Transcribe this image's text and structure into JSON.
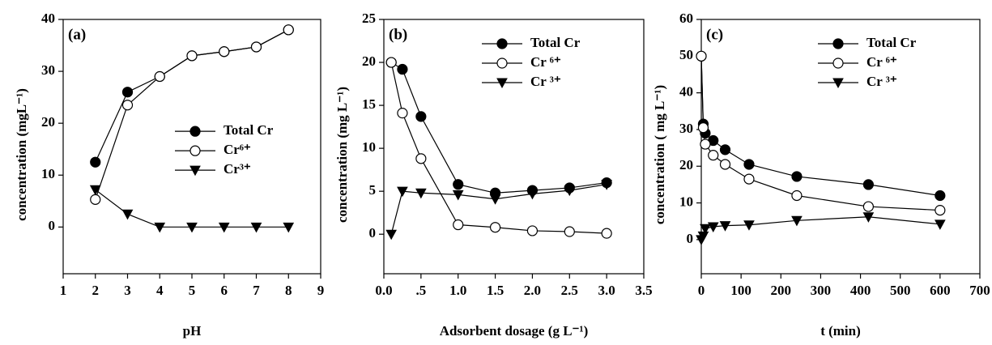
{
  "chart_data": [
    {
      "type": "line",
      "panel_label": "(a)",
      "x_label": "pH",
      "y_label": "concentration (mgL⁻¹)",
      "x": [
        2,
        3,
        4,
        5,
        6,
        7,
        8
      ],
      "series": [
        {
          "name": "Total Cr",
          "color": "#000000",
          "marker": "filled-circle",
          "values": [
            12.5,
            26,
            29,
            33,
            33.8,
            34.7,
            38
          ]
        },
        {
          "name": "Cr⁶⁺",
          "color": "#000000",
          "marker": "open-circle",
          "values": [
            5.3,
            23.5,
            29,
            33,
            33.8,
            34.7,
            38
          ]
        },
        {
          "name": "Cr³⁺",
          "color": "#000000",
          "marker": "triangle-down",
          "values": [
            7.2,
            2.5,
            0,
            0,
            0,
            0,
            0
          ]
        }
      ],
      "xlim": [
        1,
        9
      ],
      "xticks": [
        1,
        2,
        3,
        4,
        5,
        6,
        7,
        8,
        9
      ],
      "ylim": [
        -9,
        40
      ],
      "yticks": [
        0,
        10,
        20,
        30,
        40
      ],
      "legend": "center right"
    },
    {
      "type": "line",
      "panel_label": "(b)",
      "x_label": "Adsorbent dosage (g L⁻¹)",
      "y_label": "concentration (mg L⁻¹)",
      "x": [
        0.1,
        0.25,
        0.5,
        1.0,
        1.5,
        2.0,
        2.5,
        3.0
      ],
      "series": [
        {
          "name": "Total Cr",
          "color": "#000000",
          "marker": "filled-circle",
          "values": [
            20,
            19.2,
            13.7,
            5.8,
            4.8,
            5.1,
            5.4,
            6
          ]
        },
        {
          "name": "Cr ⁶⁺",
          "color": "#000000",
          "marker": "open-circle",
          "values": [
            20,
            14.1,
            8.8,
            1.1,
            0.8,
            0.4,
            0.3,
            0.1
          ]
        },
        {
          "name": "Cr ³⁺",
          "color": "#000000",
          "marker": "triangle-down",
          "values": [
            0,
            5,
            4.8,
            4.6,
            4.1,
            4.7,
            5.1,
            5.8
          ]
        }
      ],
      "xlim": [
        0,
        3.5
      ],
      "xticks": [
        {
          "value": 0,
          "label": "0.0"
        },
        {
          "value": 0.5,
          "label": ".5"
        },
        {
          "value": 1,
          "label": "1.0"
        },
        {
          "value": 1.5,
          "label": "1.5"
        },
        {
          "value": 2,
          "label": "2.0"
        },
        {
          "value": 2.5,
          "label": "2.5"
        },
        {
          "value": 3,
          "label": "3.0"
        },
        {
          "value": 3.5,
          "label": "3.5"
        }
      ],
      "ylim": [
        -4.6,
        25
      ],
      "yticks": [
        0,
        5,
        10,
        15,
        20,
        25
      ],
      "legend": "upper right"
    },
    {
      "type": "line",
      "panel_label": "(c)",
      "x_label": "t (min)",
      "y_label": "concentration ( mg L⁻¹)",
      "x": [
        0,
        5,
        10,
        30,
        60,
        120,
        240,
        420,
        600
      ],
      "series": [
        {
          "name": "Total Cr",
          "color": "#000000",
          "marker": "filled-circle",
          "values": [
            50,
            31.5,
            29,
            27,
            24.5,
            20.5,
            17.2,
            15,
            12
          ]
        },
        {
          "name": "Cr ⁶⁺",
          "color": "#000000",
          "marker": "open-circle",
          "values": [
            50,
            30.5,
            26,
            23,
            20.5,
            16.5,
            12,
            9,
            8
          ]
        },
        {
          "name": "Cr ³⁺",
          "color": "#000000",
          "marker": "triangle-down",
          "values": [
            0,
            1,
            3,
            3.5,
            3.8,
            4,
            5.2,
            6.2,
            4.2
          ]
        }
      ],
      "xlim": [
        0,
        700
      ],
      "xticks": [
        0,
        100,
        200,
        300,
        400,
        500,
        600,
        700
      ],
      "ylim": [
        -9.3,
        60
      ],
      "yticks": [
        0,
        10,
        20,
        30,
        40,
        50,
        60
      ],
      "legend": "upper right"
    }
  ]
}
